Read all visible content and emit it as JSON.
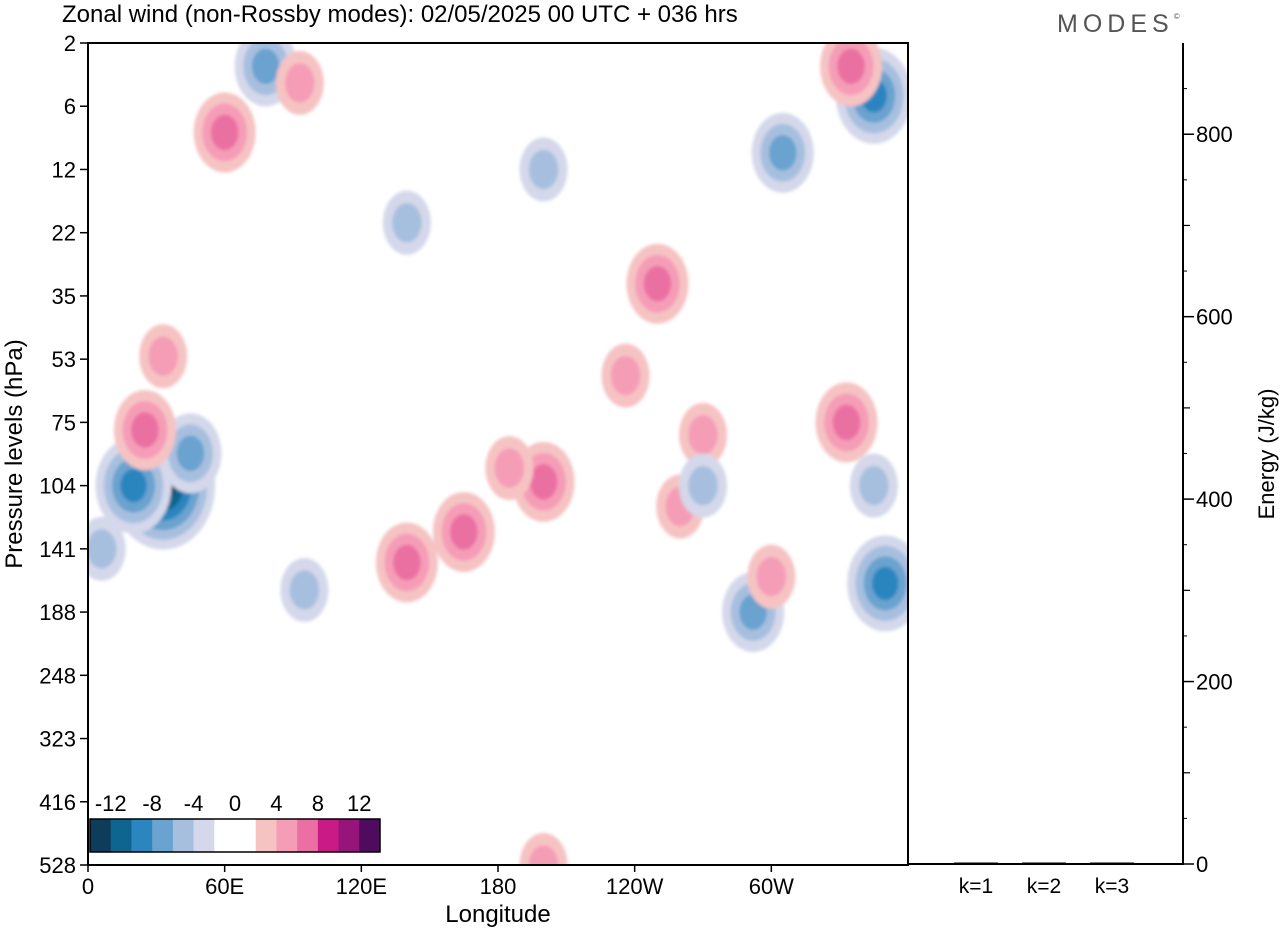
{
  "title": "Zonal wind (non-Rossby modes):  02/05/2025  00 UTC  + 036 hrs",
  "brand": "MODES",
  "brand_mark": "©",
  "colors": {
    "neg": [
      "#0d3d5a",
      "#0e6590",
      "#2b85bf",
      "#6aa3cf",
      "#a7bfdf",
      "#d4d8ea"
    ],
    "zero": "#ffffff",
    "pos": [
      "#f6c3c3",
      "#f59db7",
      "#eb6fa2",
      "#c91a86",
      "#96157a",
      "#4f0c5e"
    ]
  },
  "chart_data": [
    {
      "type": "heatmap",
      "title": "Zonal wind (non-Rossby modes):  02/05/2025  00 UTC  + 036 hrs",
      "xlabel": "Longitude",
      "ylabel": "Pressure levels (hPa)",
      "x_ticks": [
        "0",
        "60E",
        "120E",
        "180",
        "120W",
        "60W"
      ],
      "x_tick_degrees": [
        0,
        60,
        120,
        180,
        240,
        300
      ],
      "xlim": [
        0,
        360
      ],
      "y_ticks": [
        "2",
        "6",
        "12",
        "22",
        "35",
        "53",
        "75",
        "104",
        "141",
        "188",
        "248",
        "323",
        "416",
        "528"
      ],
      "colorbar_ticks": [
        "-12",
        "-8",
        "-4",
        "0",
        "4",
        "8",
        "12"
      ],
      "colorbar_levels": [
        -14,
        -12,
        -10,
        -8,
        -6,
        -4,
        -2,
        2,
        4,
        6,
        8,
        10,
        12,
        14
      ],
      "features": [
        {
          "lon": 33,
          "lev": 104,
          "value": -12
        },
        {
          "lon": 20,
          "lev": 104,
          "value": -8
        },
        {
          "lon": 45,
          "lev": 88,
          "value": -6
        },
        {
          "lon": 6,
          "lev": 141,
          "value": -4
        },
        {
          "lon": 60,
          "lev": 8,
          "value": 6
        },
        {
          "lon": 78,
          "lev": 3,
          "value": -6
        },
        {
          "lon": 93,
          "lev": 4,
          "value": 4
        },
        {
          "lon": 25,
          "lev": 78,
          "value": 6
        },
        {
          "lon": 33,
          "lev": 52,
          "value": 4
        },
        {
          "lon": 140,
          "lev": 150,
          "value": 6
        },
        {
          "lon": 165,
          "lev": 130,
          "value": 6
        },
        {
          "lon": 200,
          "lev": 102,
          "value": 6
        },
        {
          "lon": 185,
          "lev": 95,
          "value": 4
        },
        {
          "lon": 236,
          "lev": 58,
          "value": 4
        },
        {
          "lon": 250,
          "lev": 32,
          "value": 6
        },
        {
          "lon": 270,
          "lev": 80,
          "value": 4
        },
        {
          "lon": 305,
          "lev": 10,
          "value": -6
        },
        {
          "lon": 345,
          "lev": 5,
          "value": -8
        },
        {
          "lon": 350,
          "lev": 165,
          "value": -8
        },
        {
          "lon": 345,
          "lev": 104,
          "value": -4
        },
        {
          "lon": 292,
          "lev": 188,
          "value": -6
        },
        {
          "lon": 333,
          "lev": 75,
          "value": 6
        },
        {
          "lon": 300,
          "lev": 160,
          "value": 4
        },
        {
          "lon": 95,
          "lev": 170,
          "value": -4
        },
        {
          "lon": 335,
          "lev": 3,
          "value": 6
        },
        {
          "lon": 260,
          "lev": 115,
          "value": 4
        },
        {
          "lon": 270,
          "lev": 104,
          "value": -4
        },
        {
          "lon": 200,
          "lev": 12,
          "value": -4
        },
        {
          "lon": 140,
          "lev": 20,
          "value": -4
        },
        {
          "lon": 200,
          "lev": 528,
          "value": 4
        }
      ]
    },
    {
      "type": "bar",
      "ylabel": "Energy (J/kg)",
      "categories": [
        "k=1",
        "k=2",
        "k=3"
      ],
      "values": [
        1.5,
        1.0,
        0.8
      ],
      "ylim": [
        0,
        900
      ],
      "y_ticks": [
        "0",
        "200",
        "400",
        "600",
        "800"
      ]
    }
  ]
}
